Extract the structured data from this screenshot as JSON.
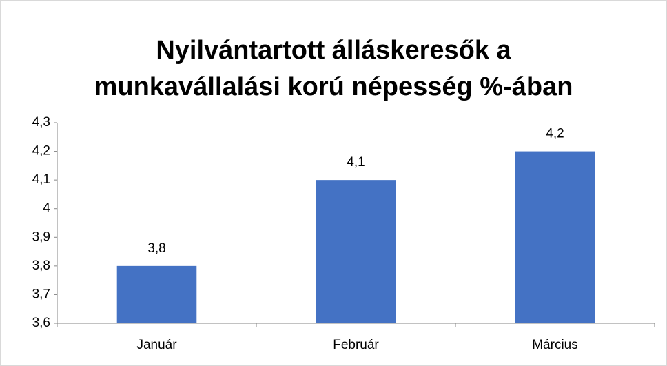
{
  "chart_data": {
    "type": "bar",
    "title": [
      "Nyilvántartott álláskeresők a",
      "munkavállalási korú népesség %-ában"
    ],
    "categories": [
      "Január",
      "Február",
      "Március"
    ],
    "values": [
      3.8,
      4.1,
      4.2
    ],
    "value_labels": [
      "3,8",
      "4,1",
      "4,2"
    ],
    "color": "#4472c4",
    "ylim": [
      3.6,
      4.3
    ],
    "yticks": [
      {
        "value": 3.6,
        "label": "3,6"
      },
      {
        "value": 3.7,
        "label": "3,7"
      },
      {
        "value": 3.8,
        "label": "3,8"
      },
      {
        "value": 3.9,
        "label": "3,9"
      },
      4,
      {
        "value": 4.1,
        "label": "4,1"
      },
      {
        "value": 4.2,
        "label": "4,2"
      },
      {
        "value": 4.3,
        "label": "4,3"
      }
    ],
    "grid": false
  }
}
